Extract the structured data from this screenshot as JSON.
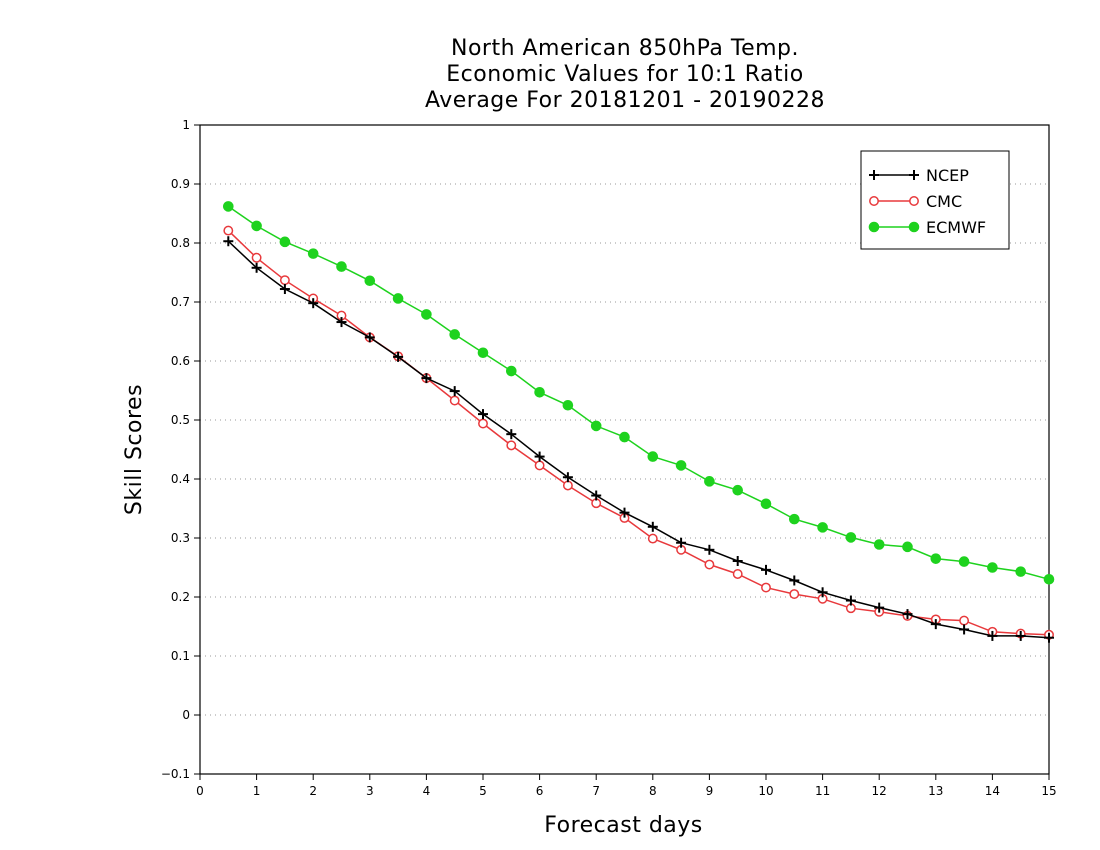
{
  "chart_data": {
    "type": "line",
    "title_lines": [
      "North American 850hPa Temp.",
      "Economic Values for 10:1 Ratio",
      "Average For 20181201 - 20190228"
    ],
    "xlabel": "Forecast days",
    "ylabel": "Skill Scores",
    "xlim": [
      0,
      15
    ],
    "ylim": [
      -0.1,
      1
    ],
    "x_ticks": [
      "0",
      "1",
      "2",
      "3",
      "4",
      "5",
      "6",
      "7",
      "8",
      "9",
      "10",
      "11",
      "12",
      "13",
      "14",
      "15"
    ],
    "y_ticks": [
      "−0.1",
      "0",
      "0.1",
      "0.2",
      "0.3",
      "0.4",
      "0.5",
      "0.6",
      "0.7",
      "0.8",
      "0.9",
      "1"
    ],
    "grid": "horizontal dotted",
    "legend_position": "top-right",
    "x": [
      0.5,
      1,
      1.5,
      2,
      2.5,
      3,
      3.5,
      4,
      4.5,
      5,
      5.5,
      6,
      6.5,
      7,
      7.5,
      8,
      8.5,
      9,
      9.5,
      10,
      10.5,
      11,
      11.5,
      12,
      12.5,
      13,
      13.5,
      14,
      14.5,
      15
    ],
    "series": [
      {
        "name": "NCEP",
        "color": "#000000",
        "marker": "plus",
        "values": [
          0.803,
          0.758,
          0.722,
          0.698,
          0.666,
          0.64,
          0.607,
          0.571,
          0.549,
          0.51,
          0.476,
          0.438,
          0.403,
          0.372,
          0.343,
          0.319,
          0.292,
          0.28,
          0.261,
          0.246,
          0.228,
          0.208,
          0.194,
          0.182,
          0.171,
          0.154,
          0.145,
          0.134,
          0.134,
          0.131
        ]
      },
      {
        "name": "CMC",
        "color": "#e8393c",
        "marker": "open-circle",
        "values": [
          0.821,
          0.775,
          0.737,
          0.706,
          0.677,
          0.64,
          0.608,
          0.571,
          0.533,
          0.494,
          0.457,
          0.423,
          0.389,
          0.359,
          0.334,
          0.299,
          0.28,
          0.255,
          0.239,
          0.216,
          0.205,
          0.197,
          0.181,
          0.175,
          0.168,
          0.162,
          0.16,
          0.141,
          0.138,
          0.136
        ]
      },
      {
        "name": "ECMWF",
        "color": "#1ed21e",
        "marker": "filled-circle",
        "values": [
          0.862,
          0.829,
          0.802,
          0.782,
          0.76,
          0.736,
          0.706,
          0.679,
          0.645,
          0.614,
          0.583,
          0.547,
          0.525,
          0.49,
          0.471,
          0.438,
          0.423,
          0.396,
          0.381,
          0.358,
          0.332,
          0.318,
          0.301,
          0.289,
          0.285,
          0.265,
          0.26,
          0.25,
          0.243,
          0.23
        ]
      }
    ]
  }
}
